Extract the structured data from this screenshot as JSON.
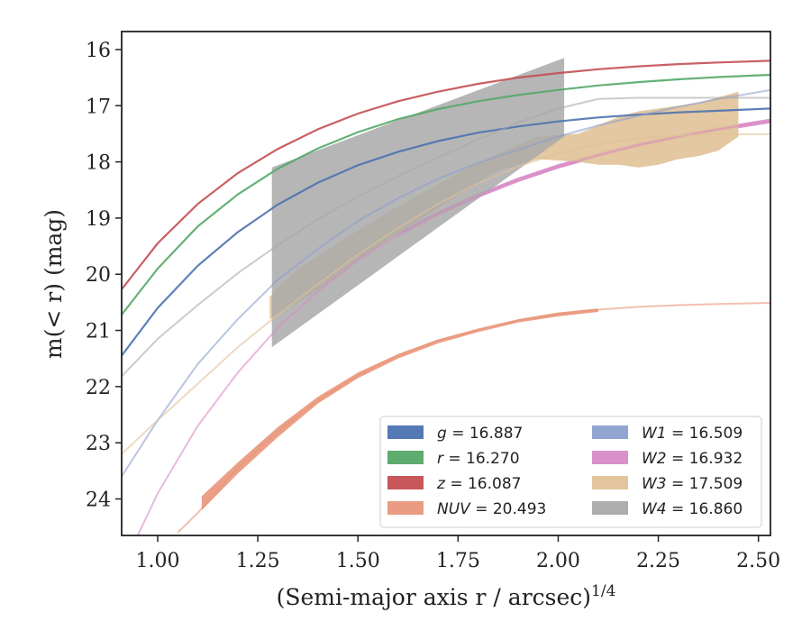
{
  "chart_data": {
    "type": "line",
    "title": "",
    "xlabel": "(Semi-major axis r / arcsec)",
    "xlabel_exponent": "1/4",
    "ylabel": "m(< r) (mag)",
    "xlim": [
      0.91,
      2.53
    ],
    "ylim": [
      24.65,
      15.68
    ],
    "y_inverted": true,
    "grid": false,
    "legend_position": "lower-right",
    "x_ticks": [
      "1.00",
      "1.25",
      "1.50",
      "1.75",
      "2.00",
      "2.25",
      "2.50"
    ],
    "y_ticks": [
      "16",
      "17",
      "18",
      "19",
      "20",
      "21",
      "22",
      "23",
      "24"
    ],
    "series": [
      {
        "name": "g = 16.887",
        "band": "g",
        "total_mag": "16.887",
        "color": "#4c72b0",
        "fit_x": [
          0.91,
          1.0,
          1.1,
          1.2,
          1.3,
          1.4,
          1.5,
          1.6,
          1.7,
          1.8,
          1.9,
          2.0,
          2.1,
          2.2,
          2.3,
          2.4,
          2.53
        ],
        "fit_y": [
          21.45,
          20.6,
          19.85,
          19.25,
          18.76,
          18.37,
          18.06,
          17.82,
          17.63,
          17.48,
          17.37,
          17.28,
          17.21,
          17.16,
          17.12,
          17.09,
          17.05
        ],
        "band_x": [],
        "band_lo": [],
        "band_hi": []
      },
      {
        "name": "r = 16.270",
        "band": "r",
        "total_mag": "16.270",
        "color": "#55a868",
        "fit_x": [
          0.91,
          1.0,
          1.1,
          1.2,
          1.3,
          1.4,
          1.5,
          1.6,
          1.7,
          1.8,
          1.9,
          2.0,
          2.1,
          2.2,
          2.3,
          2.4,
          2.53
        ],
        "fit_y": [
          20.72,
          19.9,
          19.15,
          18.58,
          18.12,
          17.76,
          17.47,
          17.24,
          17.06,
          16.92,
          16.81,
          16.72,
          16.64,
          16.58,
          16.53,
          16.49,
          16.45
        ],
        "band_x": [],
        "band_lo": [],
        "band_hi": []
      },
      {
        "name": "z = 16.087",
        "band": "z",
        "total_mag": "16.087",
        "color": "#c44e52",
        "fit_x": [
          0.91,
          1.0,
          1.1,
          1.2,
          1.3,
          1.4,
          1.5,
          1.6,
          1.7,
          1.8,
          1.9,
          2.0,
          2.1,
          2.2,
          2.3,
          2.4,
          2.53
        ],
        "fit_y": [
          20.27,
          19.45,
          18.75,
          18.2,
          17.77,
          17.42,
          17.14,
          16.92,
          16.75,
          16.61,
          16.5,
          16.42,
          16.35,
          16.3,
          16.26,
          16.23,
          16.2
        ],
        "band_x": [],
        "band_lo": [],
        "band_hi": []
      },
      {
        "name": "NUV = 20.493",
        "band": "NUV",
        "total_mag": "20.493",
        "color": "#e9967a",
        "fit_x": [
          1.05,
          1.1,
          1.2,
          1.3,
          1.4,
          1.5,
          1.6,
          1.7,
          1.8,
          1.9,
          2.0,
          2.1,
          2.2,
          2.3,
          2.4,
          2.53
        ],
        "fit_y": [
          24.6,
          24.25,
          23.45,
          22.8,
          22.25,
          21.8,
          21.45,
          21.18,
          20.98,
          20.82,
          20.71,
          20.63,
          20.58,
          20.55,
          20.53,
          20.51
        ],
        "band_x": [
          1.11,
          1.2,
          1.3,
          1.4,
          1.5,
          1.6,
          1.7,
          1.8,
          1.9,
          2.0,
          2.1
        ],
        "band_lo": [
          24.2,
          23.55,
          22.9,
          22.3,
          21.85,
          21.5,
          21.23,
          21.03,
          20.86,
          20.75,
          20.67
        ],
        "band_hi": [
          23.95,
          23.35,
          22.72,
          22.18,
          21.75,
          21.42,
          21.16,
          20.97,
          20.8,
          20.68,
          20.61
        ]
      },
      {
        "name": "W1 = 16.509",
        "band": "W1",
        "total_mag": "16.509",
        "color": "#8c9fcf",
        "fit_x": [
          0.91,
          1.0,
          1.1,
          1.2,
          1.3,
          1.4,
          1.5,
          1.6,
          1.7,
          1.8,
          1.9,
          2.0,
          2.1,
          2.2,
          2.3,
          2.4,
          2.53
        ],
        "fit_y": [
          23.6,
          22.6,
          21.6,
          20.8,
          20.1,
          19.55,
          19.05,
          18.65,
          18.3,
          18.02,
          17.78,
          17.55,
          17.35,
          17.18,
          17.02,
          16.88,
          16.72
        ],
        "band_x": [],
        "band_lo": [],
        "band_hi": []
      },
      {
        "name": "W2 = 16.932",
        "band": "W2",
        "total_mag": "16.932",
        "color": "#d88bc7",
        "fit_x": [
          0.95,
          1.0,
          1.1,
          1.2,
          1.3,
          1.4,
          1.5,
          1.6,
          1.7,
          1.8,
          1.9,
          2.0,
          2.1,
          2.2,
          2.3,
          2.4,
          2.53
        ],
        "fit_y": [
          24.65,
          23.9,
          22.7,
          21.75,
          20.95,
          20.3,
          19.75,
          19.3,
          18.92,
          18.6,
          18.32,
          18.08,
          17.88,
          17.7,
          17.55,
          17.42,
          17.27
        ],
        "band_x": [
          1.6,
          1.7,
          1.8,
          1.9,
          2.0,
          2.1,
          2.2,
          2.3,
          2.4,
          2.53
        ],
        "band_lo": [
          19.33,
          18.96,
          18.64,
          18.36,
          18.12,
          17.92,
          17.74,
          17.59,
          17.46,
          17.31
        ],
        "band_hi": [
          19.25,
          18.88,
          18.56,
          18.28,
          18.04,
          17.84,
          17.66,
          17.51,
          17.38,
          17.23
        ]
      },
      {
        "name": "W3 = 17.509",
        "band": "W3",
        "total_mag": "17.509",
        "color": "#e0c297",
        "fit_x": [
          0.91,
          1.0,
          1.1,
          1.2,
          1.3,
          1.4,
          1.5,
          1.6,
          1.7,
          1.8,
          1.9,
          2.0,
          2.1,
          2.2,
          2.3,
          2.4,
          2.53
        ],
        "fit_y": [
          23.2,
          22.6,
          21.95,
          21.3,
          20.72,
          20.18,
          19.65,
          19.18,
          18.75,
          18.38,
          18.08,
          17.85,
          17.68,
          17.58,
          17.53,
          17.51,
          17.51
        ],
        "band_x": [
          1.28,
          1.35,
          1.45,
          1.55,
          1.65,
          1.75,
          1.85,
          1.95,
          2.05,
          2.1,
          2.15,
          2.2,
          2.25,
          2.3,
          2.35,
          2.4,
          2.45
        ],
        "band_lo": [
          20.8,
          20.5,
          20.05,
          19.5,
          19.05,
          18.6,
          18.15,
          17.95,
          18.0,
          18.05,
          18.05,
          18.1,
          18.05,
          17.95,
          17.9,
          17.8,
          17.55
        ],
        "band_hi": [
          20.4,
          19.9,
          19.45,
          19.0,
          18.6,
          18.2,
          17.85,
          17.55,
          17.5,
          17.35,
          17.2,
          17.1,
          17.05,
          17.0,
          16.95,
          16.85,
          16.75
        ]
      },
      {
        "name": "W4 = 16.860",
        "band": "W4",
        "total_mag": "16.860",
        "color": "#a9a9a9",
        "fit_x": [
          0.91,
          1.0,
          1.1,
          1.2,
          1.3,
          1.4,
          1.5,
          1.6,
          1.7,
          1.8,
          1.9,
          2.0,
          2.1,
          2.2,
          2.3,
          2.4,
          2.53
        ],
        "fit_y": [
          21.82,
          21.15,
          20.55,
          19.98,
          19.48,
          19.02,
          18.62,
          18.25,
          17.92,
          17.6,
          17.3,
          17.05,
          16.88,
          16.86,
          16.86,
          16.86,
          16.86
        ],
        "band_x": [
          1.285,
          2.015
        ],
        "band_lo": [
          21.3,
          17.55
        ],
        "band_hi": [
          18.1,
          16.15
        ]
      }
    ]
  }
}
